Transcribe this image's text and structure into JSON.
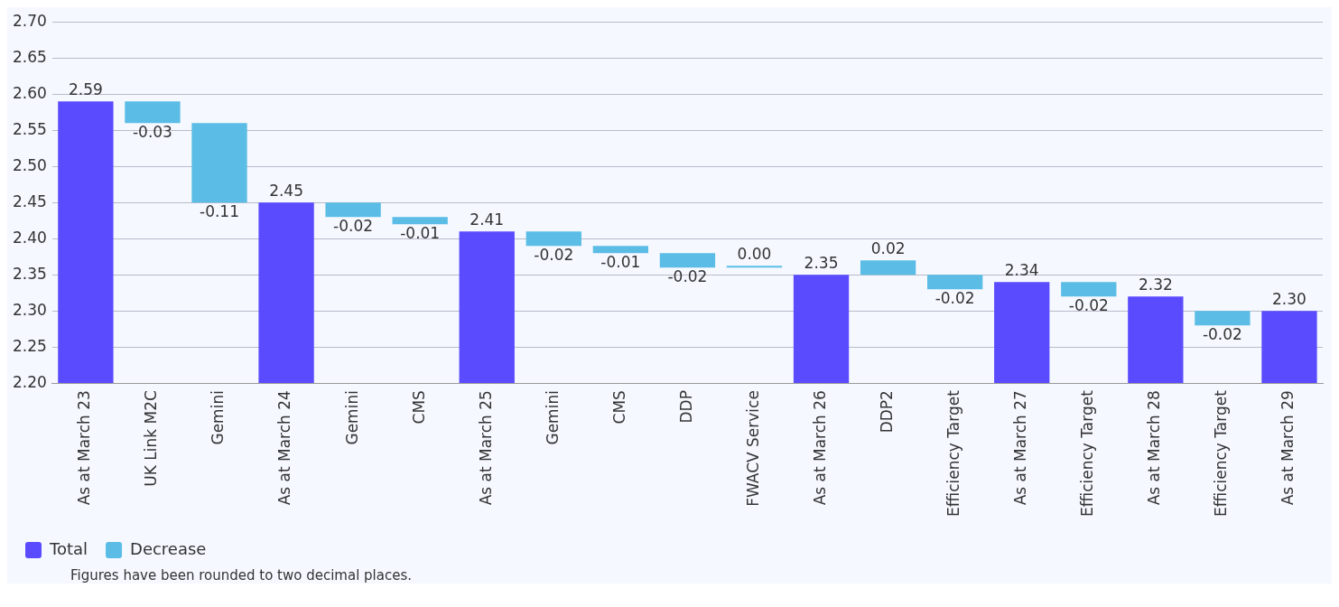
{
  "chart_data": {
    "type": "bar",
    "categories": [
      "As at March 23",
      "UK Link M2C",
      "Gemini",
      "As at March 24",
      "Gemini",
      "CMS",
      "As at March 25",
      "Gemini",
      "CMS",
      "DDP",
      "FWACV Service",
      "As at March 26",
      "DDP2",
      "Efficiency Target",
      "As at March 27",
      "Efficiency Target",
      "As at March 28",
      "Efficiency Target",
      "As at March 29"
    ],
    "series": [
      {
        "name": "Total",
        "color": "#5b4bff",
        "values": [
          2.59,
          null,
          null,
          2.45,
          null,
          null,
          2.41,
          null,
          null,
          null,
          null,
          2.35,
          null,
          null,
          2.34,
          null,
          2.32,
          null,
          2.3
        ],
        "value_labels": [
          "2.59",
          null,
          null,
          "2.45",
          null,
          null,
          "2.41",
          null,
          null,
          null,
          null,
          "2.35",
          null,
          null,
          "2.34",
          null,
          "2.32",
          null,
          "2.30"
        ]
      },
      {
        "name": "Decrease",
        "color": "#5bbde6",
        "base": [
          null,
          2.59,
          2.56,
          null,
          2.45,
          2.43,
          null,
          2.41,
          2.39,
          2.38,
          2.36,
          null,
          2.35,
          2.35,
          null,
          2.34,
          null,
          2.3,
          null
        ],
        "values": [
          null,
          -0.03,
          -0.11,
          null,
          -0.02,
          -0.01,
          null,
          -0.02,
          -0.01,
          -0.02,
          0.0,
          null,
          0.02,
          -0.02,
          null,
          -0.02,
          null,
          -0.02,
          null
        ],
        "value_labels": [
          null,
          "-0.03",
          "-0.11",
          null,
          "-0.02",
          "-0.01",
          null,
          "-0.02",
          "-0.01",
          "-0.02",
          "0.00",
          null,
          "0.02",
          "-0.02",
          null,
          "-0.02",
          null,
          "-0.02",
          null
        ]
      }
    ],
    "ylim": [
      2.2,
      2.7
    ],
    "yticks": [
      {
        "value": 2.2,
        "label": "2.20"
      },
      {
        "value": 2.25,
        "label": "2.25"
      },
      {
        "value": 2.3,
        "label": "2.30"
      },
      {
        "value": 2.35,
        "label": "2.35"
      },
      {
        "value": 2.4,
        "label": "2.40"
      },
      {
        "value": 2.45,
        "label": "2.45"
      },
      {
        "value": 2.5,
        "label": "2.50"
      },
      {
        "value": 2.55,
        "label": "2.55"
      },
      {
        "value": 2.6,
        "label": "2.60"
      },
      {
        "value": 2.65,
        "label": "2.65"
      },
      {
        "value": 2.7,
        "label": "2.70"
      }
    ],
    "grid": "y",
    "legend": "bottom left",
    "annotations": [
      "Figures have been rounded to two decimal places."
    ]
  }
}
